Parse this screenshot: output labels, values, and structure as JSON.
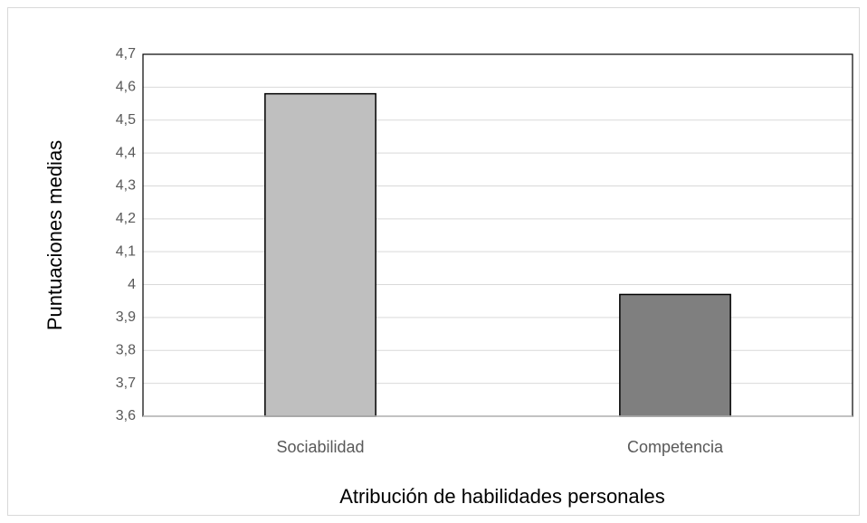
{
  "chart_data": {
    "type": "bar",
    "categories": [
      "Sociabilidad",
      "Competencia"
    ],
    "values": [
      4.58,
      3.97
    ],
    "colors": [
      "#bfbfbf",
      "#7f7f7f"
    ],
    "xlabel": "Atribución de habilidades personales",
    "ylabel": "Puntuaciones medias",
    "ylim": [
      3.6,
      4.7
    ],
    "yticks": [
      {
        "value": 3.6,
        "label": "3,6"
      },
      {
        "value": 3.7,
        "label": "3,7"
      },
      {
        "value": 3.8,
        "label": "3,8"
      },
      {
        "value": 3.9,
        "label": "3,9"
      },
      4,
      {
        "value": 4.1,
        "label": "4,1"
      },
      {
        "value": 4.2,
        "label": "4,2"
      },
      {
        "value": 4.3,
        "label": "4,3"
      },
      {
        "value": 4.4,
        "label": "4,4"
      },
      {
        "value": 4.5,
        "label": "4,5"
      },
      {
        "value": 4.6,
        "label": "4,6"
      },
      {
        "value": 4.7,
        "label": "4,7"
      }
    ],
    "grid": true
  }
}
